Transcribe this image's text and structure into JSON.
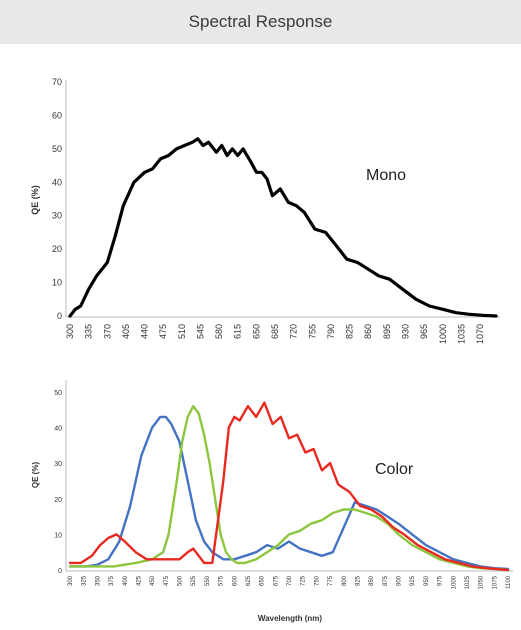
{
  "header": {
    "title": "Spectral Response"
  },
  "chart_data": [
    {
      "type": "line",
      "annotation": "Mono",
      "ylabel": "QE (%)",
      "xlabel": "",
      "ylim": [
        0,
        70
      ],
      "yticks": [
        0,
        10,
        20,
        30,
        40,
        50,
        60,
        70
      ],
      "xlim": [
        300,
        1100
      ],
      "xticks": [
        300,
        335,
        370,
        405,
        440,
        475,
        510,
        545,
        580,
        615,
        650,
        685,
        720,
        755,
        790,
        825,
        860,
        895,
        930,
        965,
        1000,
        1035,
        1070
      ],
      "grid": false,
      "series": [
        {
          "color": "#000000",
          "x": [
            300,
            310,
            320,
            335,
            350,
            370,
            385,
            400,
            420,
            440,
            455,
            470,
            485,
            500,
            515,
            530,
            540,
            550,
            560,
            575,
            585,
            595,
            605,
            615,
            625,
            640,
            650,
            660,
            670,
            680,
            695,
            710,
            725,
            740,
            760,
            780,
            800,
            820,
            840,
            860,
            880,
            900,
            925,
            950,
            975,
            1000,
            1025,
            1050,
            1075,
            1100
          ],
          "y": [
            0,
            2,
            3,
            8,
            12,
            16,
            24,
            33,
            40,
            43,
            44,
            47,
            48,
            50,
            51,
            52,
            53,
            51,
            52,
            49,
            51,
            48,
            50,
            48,
            50,
            46,
            43,
            43,
            41,
            36,
            38,
            34,
            33,
            31,
            26,
            25,
            21,
            17,
            16,
            14,
            12,
            11,
            8,
            5,
            3,
            2,
            1,
            0.5,
            0.2,
            0
          ]
        }
      ]
    },
    {
      "type": "line",
      "annotation": "Color",
      "ylabel": "QE (%)",
      "xlabel": "Wavelength (nm)",
      "ylim": [
        0,
        50
      ],
      "yticks": [
        0,
        10,
        20,
        30,
        40,
        50
      ],
      "xlim": [
        300,
        1100
      ],
      "xticks": [
        300,
        325,
        350,
        375,
        400,
        425,
        450,
        475,
        500,
        525,
        550,
        575,
        600,
        625,
        650,
        675,
        700,
        725,
        750,
        775,
        800,
        825,
        850,
        875,
        900,
        925,
        950,
        975,
        1000,
        1025,
        1050,
        1075,
        1100
      ],
      "grid": false,
      "series": [
        {
          "color": "#4472c4",
          "x": [
            300,
            330,
            350,
            370,
            390,
            410,
            430,
            450,
            465,
            475,
            485,
            500,
            515,
            530,
            545,
            560,
            580,
            600,
            620,
            640,
            660,
            680,
            700,
            720,
            740,
            760,
            780,
            800,
            820,
            840,
            860,
            880,
            900,
            925,
            950,
            975,
            1000,
            1025,
            1050,
            1075,
            1100
          ],
          "y": [
            1,
            1,
            1.5,
            3,
            8,
            18,
            32,
            40,
            43,
            43,
            41,
            36,
            25,
            14,
            8,
            5,
            3,
            3,
            4,
            5,
            7,
            6,
            8,
            6,
            5,
            4,
            5,
            12,
            19,
            18,
            17,
            15,
            13,
            10,
            7,
            5,
            3,
            2,
            1,
            0.5,
            0.3
          ]
        },
        {
          "color": "#8cc63f",
          "x": [
            300,
            340,
            380,
            420,
            450,
            470,
            480,
            495,
            505,
            515,
            525,
            535,
            545,
            555,
            565,
            575,
            585,
            595,
            605,
            620,
            640,
            660,
            680,
            700,
            720,
            740,
            760,
            780,
            800,
            820,
            840,
            860,
            880,
            900,
            925,
            950,
            975,
            1000,
            1025,
            1050,
            1075,
            1100
          ],
          "y": [
            1,
            1,
            1,
            2,
            3,
            5,
            10,
            25,
            36,
            43,
            46,
            44,
            38,
            30,
            20,
            10,
            5,
            3,
            2,
            2,
            3,
            5,
            7,
            10,
            11,
            13,
            14,
            16,
            17,
            17,
            16,
            15,
            13,
            10,
            7,
            5,
            3,
            2,
            1,
            0.5,
            0.3,
            0
          ]
        },
        {
          "color": "#e8291f",
          "x": [
            300,
            320,
            340,
            355,
            370,
            385,
            400,
            420,
            440,
            460,
            480,
            500,
            515,
            525,
            535,
            545,
            560,
            580,
            590,
            600,
            610,
            625,
            640,
            655,
            670,
            685,
            700,
            715,
            730,
            745,
            760,
            775,
            790,
            810,
            830,
            850,
            870,
            890,
            910,
            935,
            960,
            985,
            1010,
            1035,
            1060,
            1085,
            1100
          ],
          "y": [
            2,
            2,
            4,
            7,
            9,
            10,
            8,
            5,
            3,
            3,
            3,
            3,
            5,
            6,
            4,
            2,
            2,
            25,
            40,
            43,
            42,
            46,
            43,
            47,
            41,
            43,
            37,
            38,
            33,
            34,
            28,
            30,
            24,
            22,
            18,
            17,
            15,
            12,
            10,
            7,
            5,
            3,
            2,
            1,
            0.5,
            0.2,
            0
          ]
        }
      ]
    }
  ]
}
